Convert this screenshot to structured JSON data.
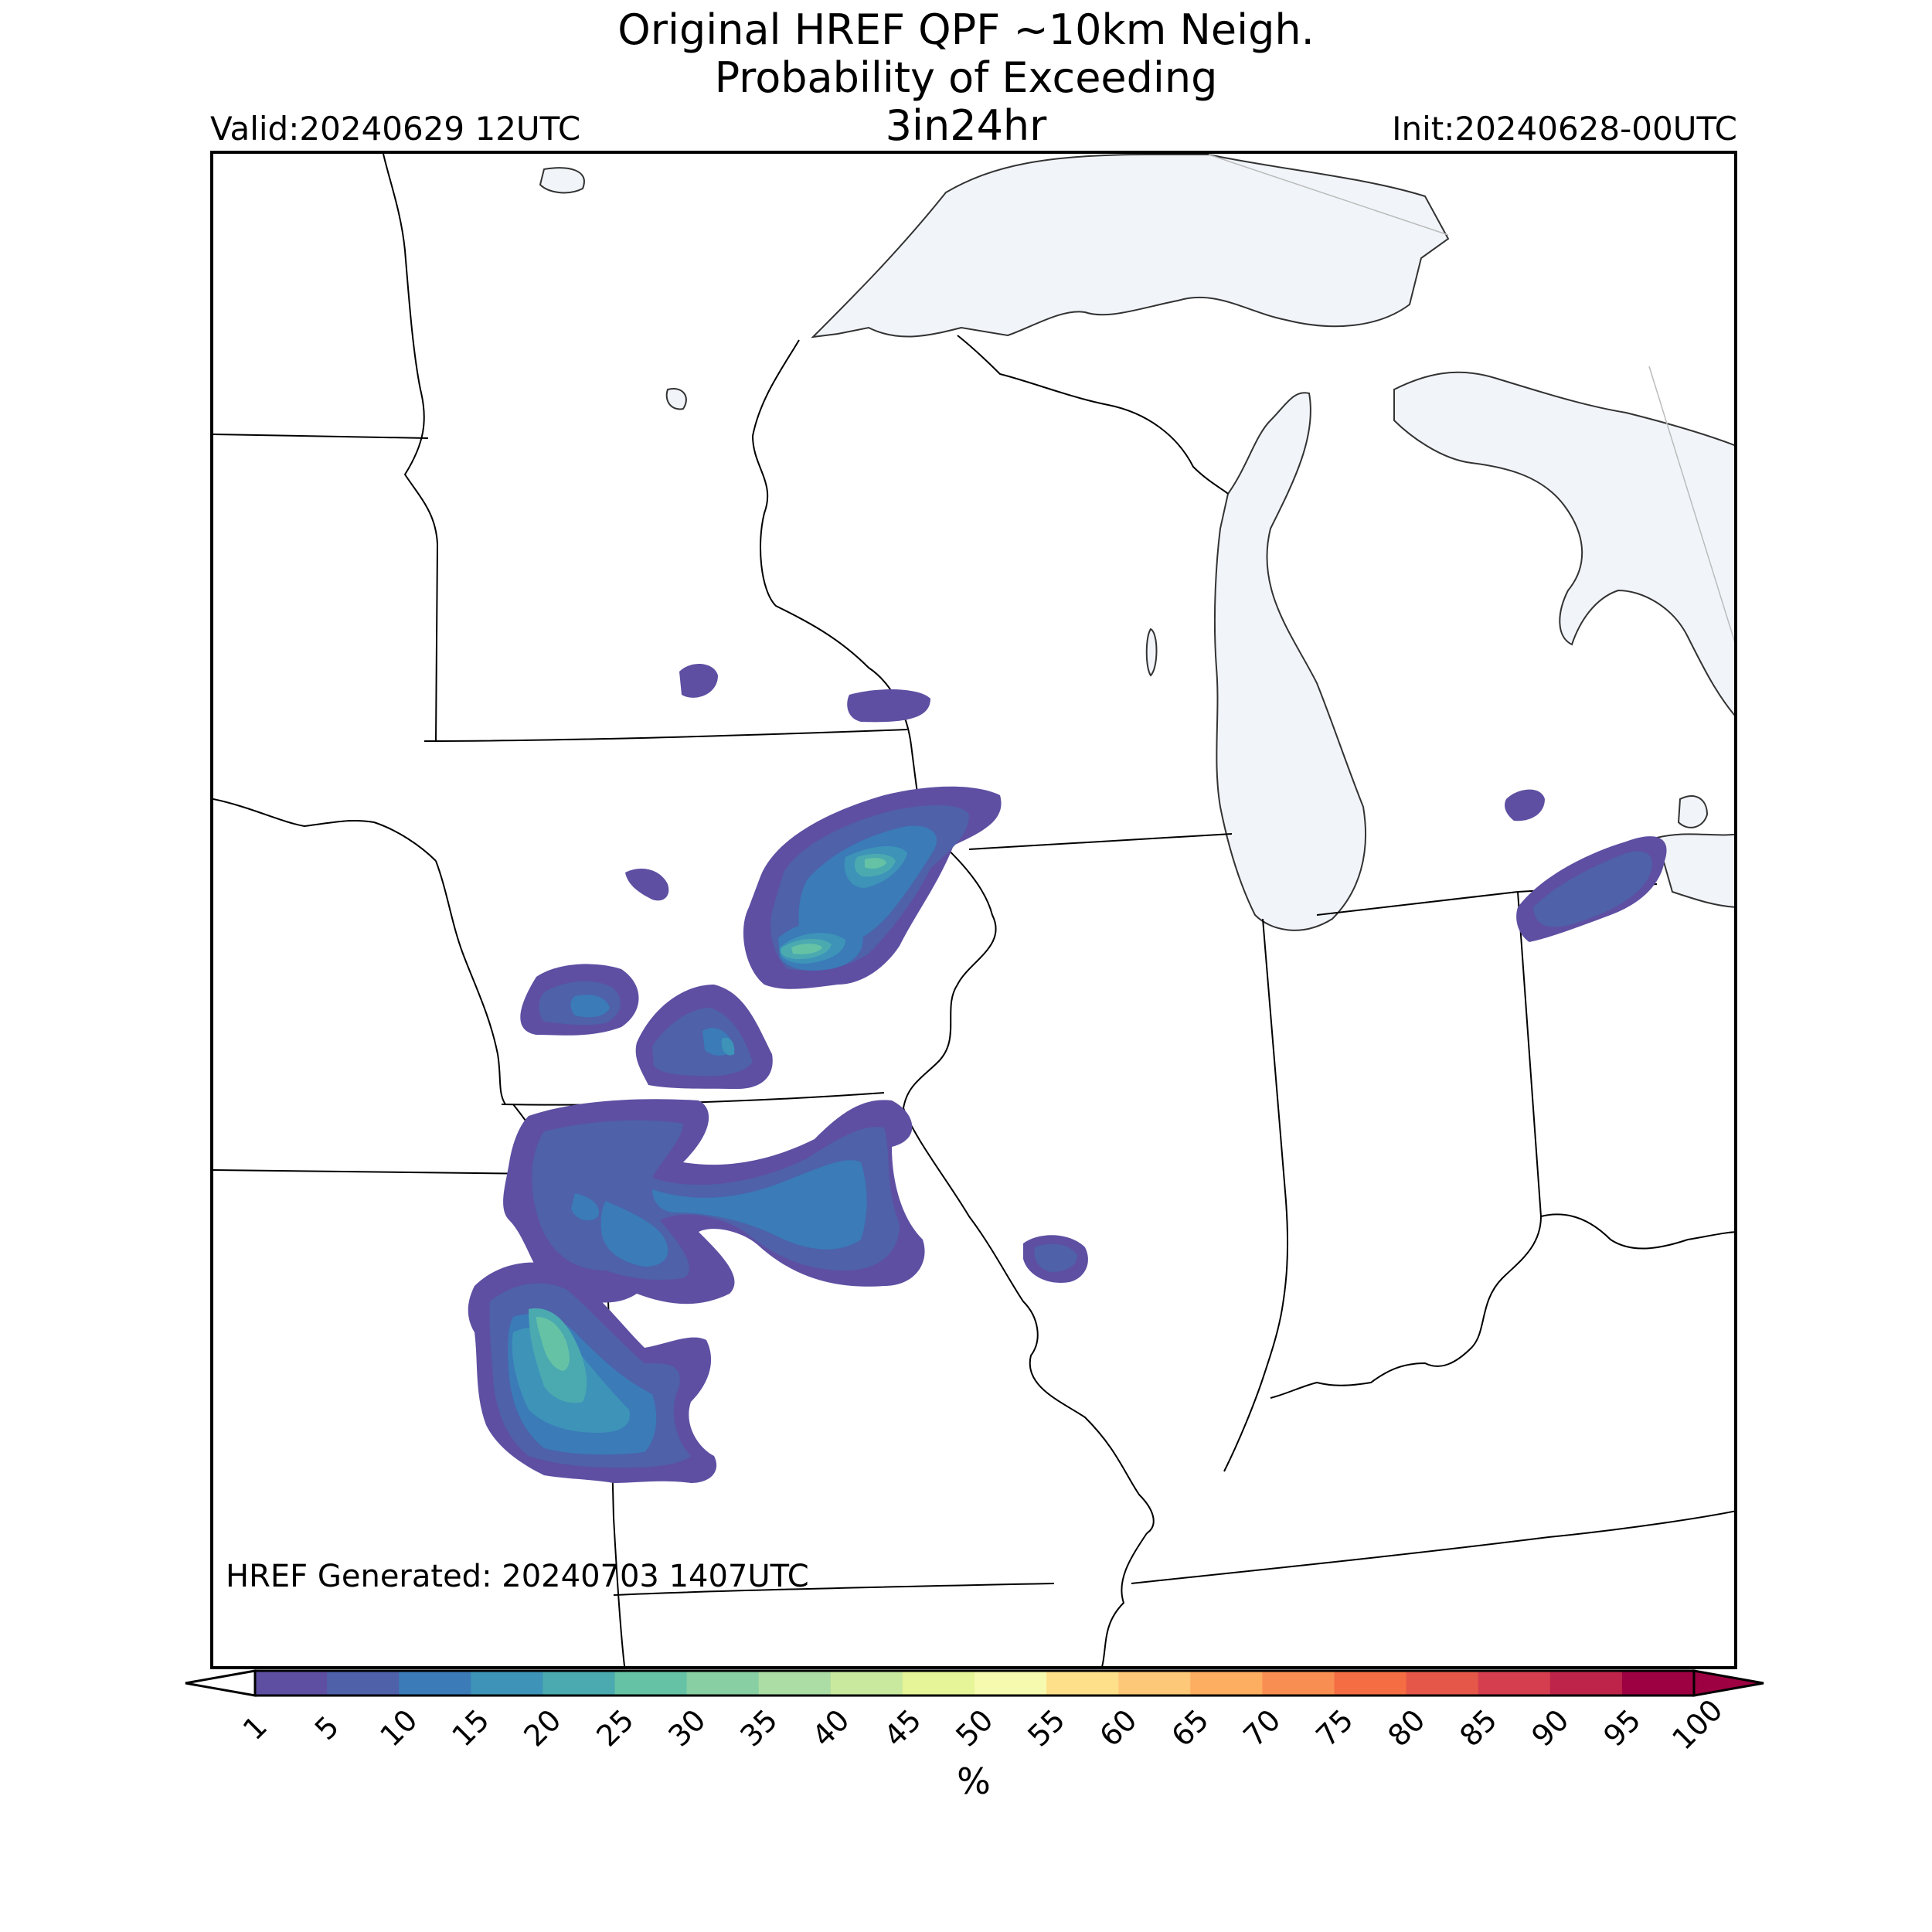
{
  "header": {
    "title_line1": "Original HREF QPF ~10km Neigh.",
    "title_line2": "Probability of Exceeding",
    "title_line3": "3in24hr",
    "valid_label": "Valid:20240629 12UTC",
    "init_label": "Init:20240628-00UTC"
  },
  "map": {
    "generated_label": "HREF Generated: 20240703 1407UTC",
    "water_color": "#f1f5fa",
    "land_color": "#ffffff",
    "border_color": "#000000"
  },
  "colorbar": {
    "unit": "%",
    "ticks": [
      "1",
      "5",
      "10",
      "15",
      "20",
      "25",
      "30",
      "35",
      "40",
      "45",
      "50",
      "55",
      "60",
      "65",
      "70",
      "75",
      "80",
      "85",
      "90",
      "95",
      "100"
    ],
    "colors": [
      "#5e4fa2",
      "#4e61a9",
      "#3a7bb8",
      "#3e93b8",
      "#4aaab0",
      "#66c2a5",
      "#88cfa4",
      "#abdda4",
      "#c9e99e",
      "#e6f598",
      "#f6faaf",
      "#fee08b",
      "#fdc877",
      "#fdae61",
      "#f98e52",
      "#f46d43",
      "#e55749",
      "#d53e4f",
      "#be2449",
      "#9e0142"
    ],
    "under_color": "#ffffff",
    "over_color": "#9e0142"
  }
}
